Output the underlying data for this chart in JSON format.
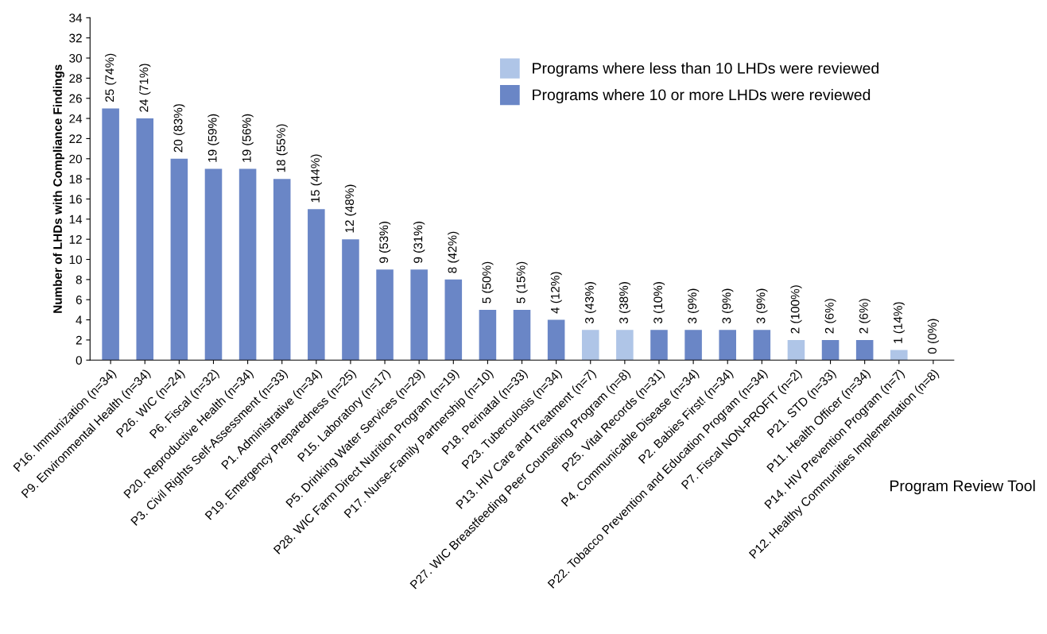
{
  "chart_data": {
    "type": "bar",
    "ylabel": "Number of LHDs with Compliance Findings",
    "xlabel": "Program Review Tool",
    "categories": [
      "P16. Immunization (n=34)",
      "P9. Environmental Health (n=34)",
      "P26. WIC (n=24)",
      "P6. Fiscal (n=32)",
      "P20. Reproductive Health (n=34)",
      "P3. Civil Rights Self-Assessment (n=33)",
      "P1. Administrative (n=34)",
      "P19. Emergency Preparedness (n=25)",
      "P15. Laboratory (n=17)",
      "P5. Drinking Water Services (n=29)",
      "P28. WIC Farm Direct Nutrition Program (n=19)",
      "P17. Nurse-Family Partnership (n=10)",
      "P18. Perinatal (n=33)",
      "P23. Tuberculosis (n=34)",
      "P13. HIV Care and Treatment (n=7)",
      "P27. WIC Breastfeeding Peer Counseling Program (n=8)",
      "P25. Vital Records (n=31)",
      "P4. Communicable Disease (n=34)",
      "P2. Babies First! (n=34)",
      "P22. Tobacco Prevention and Education Program (n=34)",
      "P7. Fiscal NON-PROFIT (n=2)",
      "P21. STD (n=33)",
      "P11. Health Officer (n=34)",
      "P14. HIV Prevention Program (n=7)",
      "P12. Healthy Communities Implementation (n=8)"
    ],
    "series": [
      {
        "name": "Programs where less than 10 LHDs were reviewed",
        "color": "#afc5e7",
        "values": [
          null,
          null,
          null,
          null,
          null,
          null,
          null,
          null,
          null,
          null,
          null,
          null,
          null,
          null,
          3,
          3,
          null,
          null,
          null,
          null,
          2,
          null,
          null,
          1,
          0
        ],
        "value_labels": [
          null,
          null,
          null,
          null,
          null,
          null,
          null,
          null,
          null,
          null,
          null,
          null,
          null,
          null,
          "3 (43%)",
          "3 (38%)",
          null,
          null,
          null,
          null,
          "2 (100%)",
          null,
          null,
          "1 (14%)",
          "0 (0%)"
        ]
      },
      {
        "name": "Programs where 10 or more LHDs were reviewed",
        "color": "#6a86c6",
        "values": [
          25,
          24,
          20,
          19,
          19,
          18,
          15,
          12,
          9,
          9,
          8,
          5,
          5,
          4,
          null,
          null,
          3,
          3,
          3,
          3,
          null,
          2,
          2,
          null,
          null
        ],
        "value_labels": [
          "25 (74%)",
          "24 (71%)",
          "20 (83%)",
          "19 (59%)",
          "19 (56%)",
          "18 (55%)",
          "15 (44%)",
          "12 (48%)",
          "9 (53%)",
          "9 (31%)",
          "8 (42%)",
          "5 (50%)",
          "5 (15%)",
          "4 (12%)",
          null,
          null,
          "3 (10%)",
          "3 (9%)",
          "3 (9%)",
          "3 (9%)",
          null,
          "2 (6%)",
          "2 (6%)",
          null,
          null
        ]
      }
    ],
    "ylim": [
      0,
      34
    ],
    "yticks": [
      0,
      2,
      4,
      6,
      8,
      10,
      12,
      14,
      16,
      18,
      20,
      22,
      24,
      26,
      28,
      30,
      32,
      34
    ],
    "legend": "top right",
    "grid": false
  }
}
